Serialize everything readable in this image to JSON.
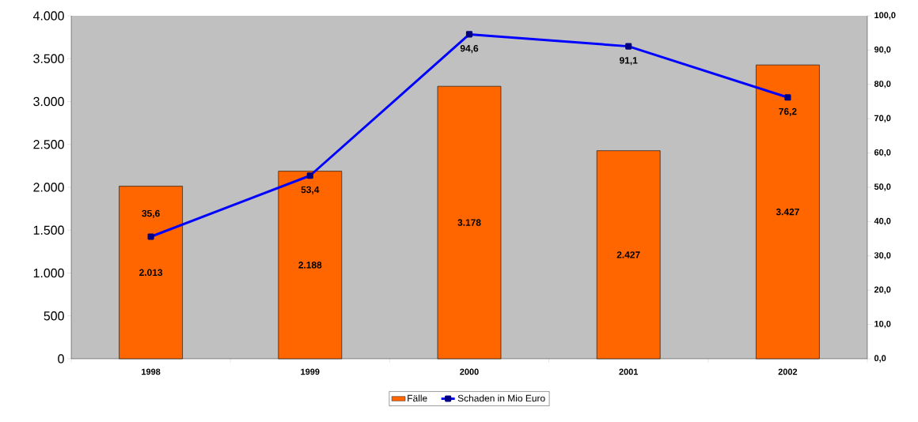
{
  "chart_data": {
    "type": "bar",
    "categories": [
      "1998",
      "1999",
      "2000",
      "2001",
      "2002"
    ],
    "series": [
      {
        "name": "Fälle",
        "color": "#ff6600",
        "values": [
          2013,
          2188,
          3178,
          2427,
          3427
        ],
        "value_labels": [
          "2.013",
          "2.188",
          "3.178",
          "2.427",
          "3.427"
        ]
      },
      {
        "name": "Schaden in Mio Euro",
        "type": "line",
        "axis": "y2",
        "color": "#0000ff",
        "values": [
          35.6,
          53.4,
          94.6,
          91.1,
          76.2
        ],
        "value_labels": [
          "35,6",
          "53,4",
          "94,6",
          "91,1",
          "76,2"
        ]
      }
    ],
    "ylim": [
      0,
      4000
    ],
    "yticks": [
      0,
      500,
      {
        "value": 1000,
        "label": "1.000"
      },
      {
        "value": 1500,
        "label": "1.500"
      },
      {
        "value": 2000,
        "label": "2.000"
      },
      {
        "value": 2500,
        "label": "2.500"
      },
      {
        "value": 3000,
        "label": "3.000"
      },
      {
        "value": 3500,
        "label": "3.500"
      },
      {
        "value": 4000,
        "label": "4.000"
      }
    ],
    "y2lim": [
      0,
      100
    ],
    "y2ticks": [
      {
        "value": 0,
        "label": "0,0"
      },
      {
        "value": 10,
        "label": "10,0"
      },
      {
        "value": 20,
        "label": "20,0"
      },
      {
        "value": 30,
        "label": "30,0"
      },
      {
        "value": 40,
        "label": "40,0"
      },
      {
        "value": 50,
        "label": "50,0"
      },
      {
        "value": 60,
        "label": "60,0"
      },
      {
        "value": 70,
        "label": "70,0"
      },
      {
        "value": 80,
        "label": "80,0"
      },
      {
        "value": 90,
        "label": "90,0"
      },
      {
        "value": 100,
        "label": "100,0"
      }
    ],
    "marker": "square",
    "legend": "bottom"
  }
}
